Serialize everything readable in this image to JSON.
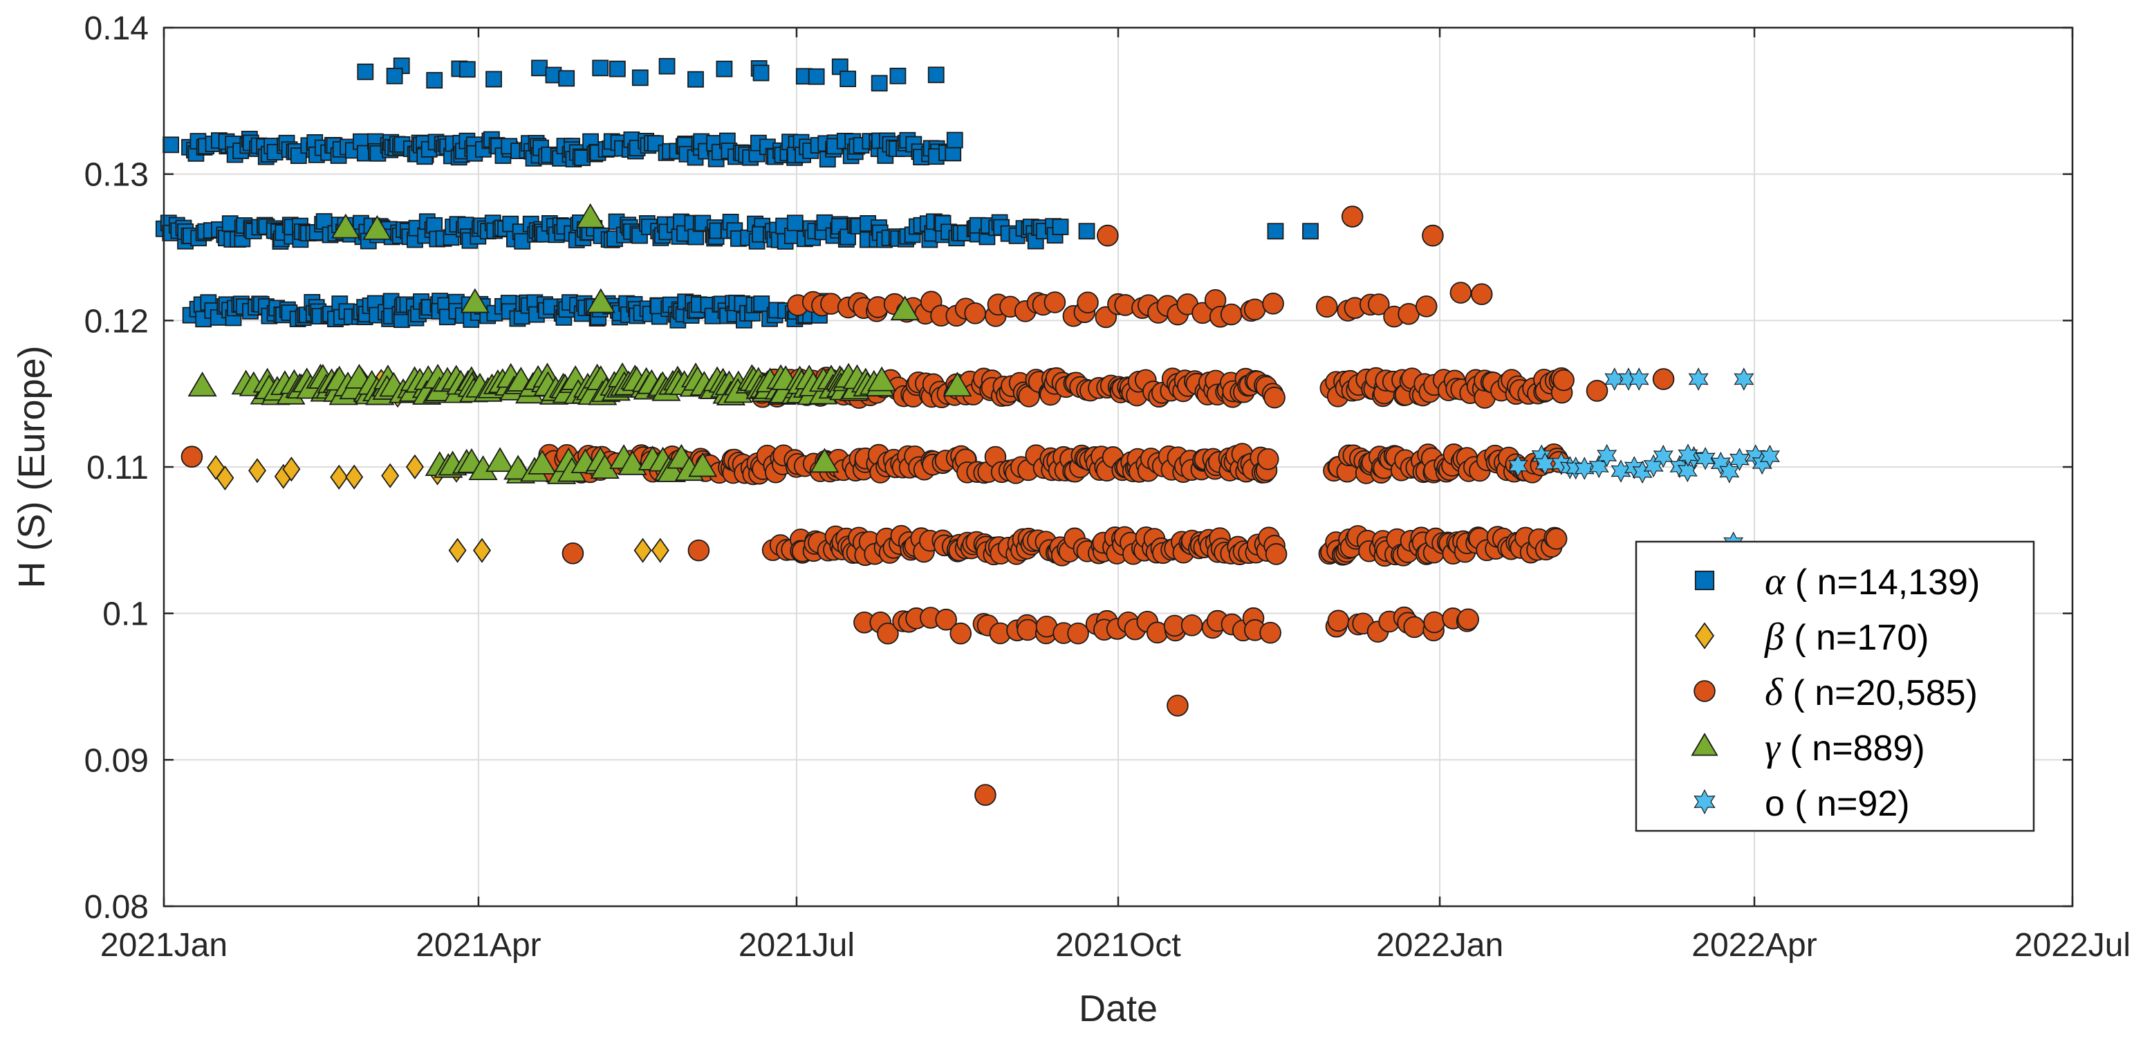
{
  "chart_data": {
    "type": "scatter",
    "xlabel": "Date",
    "ylabel": "H  (S) (Europe)",
    "xlim": [
      "2021-01-01",
      "2022-07-01"
    ],
    "ylim": [
      0.08,
      0.14
    ],
    "x_ticks": [
      "2021-01-01",
      "2021-04-01",
      "2021-07-01",
      "2021-10-01",
      "2022-01-01",
      "2022-04-01",
      "2022-07-01"
    ],
    "x_tick_labels": [
      "2021Jan",
      "2021Apr",
      "2021Jul",
      "2021Oct",
      "2022Jan",
      "2022Apr",
      "2022Jul"
    ],
    "y_ticks": [
      0.08,
      0.09,
      0.1,
      0.11,
      0.12,
      0.13,
      0.14
    ],
    "y_tick_labels": [
      "0.08",
      "0.09",
      "0.1",
      "0.11",
      "0.12",
      "0.13",
      "0.14"
    ],
    "grid": true,
    "legend_position": "right",
    "series": [
      {
        "name": "α ( n=14,139)",
        "symbol": "α",
        "count_label": " ( n=14,139)",
        "marker": "square",
        "color": "#0072BD",
        "clusters": [
          {
            "y": 0.1368,
            "x_ranges": [
              [
                "2021-03-01",
                "2021-08-10"
              ]
            ],
            "density": "sparse"
          },
          {
            "y": 0.1317,
            "x_ranges": [
              [
                "2021-01-08",
                "2021-08-15"
              ]
            ],
            "density": "dense"
          },
          {
            "y": 0.1261,
            "x_ranges": [
              [
                "2021-01-01",
                "2021-09-15"
              ]
            ],
            "density": "dense"
          },
          {
            "y": 0.1207,
            "x_ranges": [
              [
                "2021-01-08",
                "2021-07-08"
              ]
            ],
            "density": "dense"
          }
        ],
        "points": [
          {
            "x": "2021-01-03",
            "y": 0.132
          },
          {
            "x": "2021-03-08",
            "y": 0.1367
          },
          {
            "x": "2021-09-22",
            "y": 0.1261
          },
          {
            "x": "2021-11-15",
            "y": 0.1261
          },
          {
            "x": "2021-11-25",
            "y": 0.1261
          }
        ]
      },
      {
        "name": "β ( n=170)",
        "symbol": "β",
        "count_label": " ( n=170)",
        "marker": "diamond",
        "color": "#EDB120",
        "clusters": [
          {
            "y": 0.1098,
            "x_ranges": [
              [
                "2021-01-13",
                "2021-03-31"
              ]
            ],
            "density": "sparse"
          },
          {
            "y": 0.1155,
            "x_ranges": [
              [
                "2021-02-25",
                "2021-03-15"
              ]
            ],
            "density": "sparse"
          }
        ],
        "points": [
          {
            "x": "2021-03-26",
            "y": 0.1043
          },
          {
            "x": "2021-04-02",
            "y": 0.1043
          },
          {
            "x": "2021-05-18",
            "y": 0.1043
          },
          {
            "x": "2021-05-23",
            "y": 0.1043
          }
        ]
      },
      {
        "name": "δ ( n=20,585)",
        "symbol": "δ",
        "count_label": " ( n=20,585)",
        "marker": "circle",
        "color": "#D95319",
        "clusters": [
          {
            "y": 0.1208,
            "x_ranges": [
              [
                "2021-07-01",
                "2021-11-15"
              ],
              [
                "2021-12-01",
                "2021-12-28"
              ]
            ],
            "density": "medium"
          },
          {
            "y": 0.1154,
            "x_ranges": [
              [
                "2021-06-20",
                "2021-11-15"
              ],
              [
                "2021-12-01",
                "2022-02-05"
              ]
            ],
            "density": "dense"
          },
          {
            "y": 0.1102,
            "x_ranges": [
              [
                "2021-04-20",
                "2021-11-15"
              ],
              [
                "2021-12-01",
                "2022-02-05"
              ]
            ],
            "density": "dense"
          },
          {
            "y": 0.1046,
            "x_ranges": [
              [
                "2021-06-25",
                "2021-11-15"
              ],
              [
                "2021-12-01",
                "2022-02-05"
              ]
            ],
            "density": "dense"
          },
          {
            "y": 0.0992,
            "x_ranges": [
              [
                "2021-07-20",
                "2021-11-15"
              ],
              [
                "2021-12-01",
                "2022-01-12"
              ]
            ],
            "density": "medium"
          }
        ],
        "points": [
          {
            "x": "2021-01-09",
            "y": 0.1107
          },
          {
            "x": "2021-09-28",
            "y": 0.1258
          },
          {
            "x": "2021-12-07",
            "y": 0.1271
          },
          {
            "x": "2021-12-30",
            "y": 0.1258
          },
          {
            "x": "2022-01-07",
            "y": 0.1219
          },
          {
            "x": "2022-01-13",
            "y": 0.1218
          },
          {
            "x": "2021-10-18",
            "y": 0.0937
          },
          {
            "x": "2021-08-24",
            "y": 0.0876
          },
          {
            "x": "2021-04-28",
            "y": 0.1041
          },
          {
            "x": "2021-06-03",
            "y": 0.1043
          },
          {
            "x": "2022-02-15",
            "y": 0.1152
          },
          {
            "x": "2022-03-06",
            "y": 0.116
          }
        ]
      },
      {
        "name": "γ ( n=889)",
        "symbol": "γ",
        "count_label": " ( n=889)",
        "marker": "triangle",
        "color": "#77AC30",
        "clusters": [
          {
            "y": 0.1155,
            "x_ranges": [
              [
                "2021-01-25",
                "2021-07-25"
              ]
            ],
            "density": "dense"
          },
          {
            "y": 0.11,
            "x_ranges": [
              [
                "2021-03-20",
                "2021-06-05"
              ]
            ],
            "density": "medium"
          }
        ],
        "points": [
          {
            "x": "2021-01-12",
            "y": 0.1155
          },
          {
            "x": "2021-02-22",
            "y": 0.1263
          },
          {
            "x": "2021-03-03",
            "y": 0.1262
          },
          {
            "x": "2021-05-03",
            "y": 0.127
          },
          {
            "x": "2021-05-06",
            "y": 0.1212
          },
          {
            "x": "2021-03-31",
            "y": 0.1212
          },
          {
            "x": "2021-08-01",
            "y": 0.1207
          },
          {
            "x": "2021-07-09",
            "y": 0.1103
          },
          {
            "x": "2021-08-16",
            "y": 0.1155
          }
        ]
      },
      {
        "name": "o ( n=92)",
        "symbol": "o",
        "count_label": " ( n=92)",
        "marker": "hexagram",
        "color": "#4DBEEE",
        "clusters": [
          {
            "y": 0.1102,
            "x_ranges": [
              [
                "2022-01-25",
                "2022-04-10"
              ]
            ],
            "density": "medium"
          }
        ],
        "points": [
          {
            "x": "2022-02-20",
            "y": 0.116
          },
          {
            "x": "2022-02-24",
            "y": 0.116
          },
          {
            "x": "2022-02-27",
            "y": 0.116
          },
          {
            "x": "2022-03-16",
            "y": 0.116
          },
          {
            "x": "2022-03-29",
            "y": 0.116
          },
          {
            "x": "2022-03-26",
            "y": 0.1048
          },
          {
            "x": "2022-03-13",
            "y": 0.1108
          }
        ]
      }
    ]
  }
}
